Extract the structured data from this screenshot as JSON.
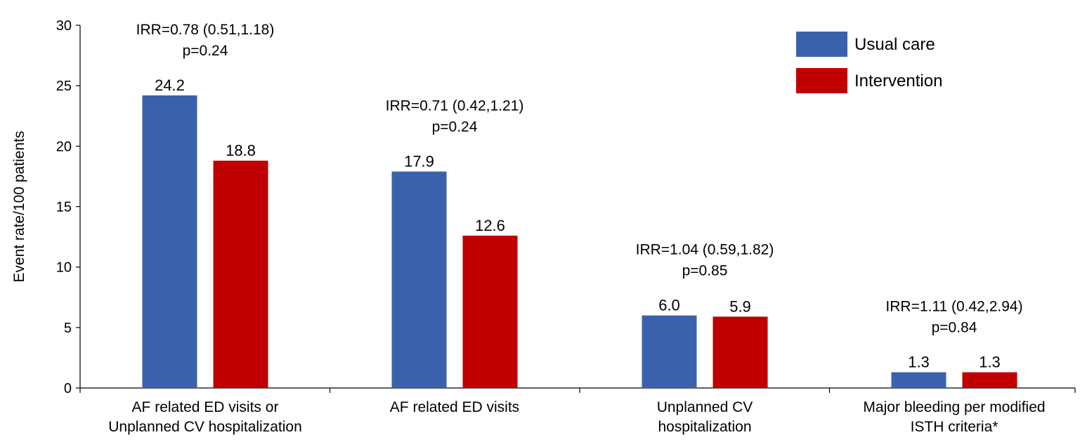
{
  "chart_data": {
    "type": "bar",
    "title": "",
    "ylabel": "Event rate/100 patients",
    "xlabel": "",
    "ylim": [
      0,
      30
    ],
    "yticks": [
      0,
      5,
      10,
      15,
      20,
      25,
      30
    ],
    "grid": false,
    "legend_position": "top-right",
    "categories": [
      [
        "AF related ED visits or",
        "Unplanned CV hospitalization"
      ],
      [
        "AF related ED visits"
      ],
      [
        "Unplanned CV",
        "hospitalization"
      ],
      [
        "Major bleeding per modified",
        "ISTH criteria*"
      ]
    ],
    "series": [
      {
        "name": "Usual care",
        "color": "#3A62AC",
        "values": [
          24.2,
          17.9,
          6.0,
          1.3
        ],
        "labels": [
          "24.2",
          "17.9",
          "6.0",
          "1.3"
        ]
      },
      {
        "name": "Intervention",
        "color": "#C00000",
        "values": [
          18.8,
          12.6,
          5.9,
          1.3
        ],
        "labels": [
          "18.8",
          "12.6",
          "5.9",
          "1.3"
        ]
      }
    ],
    "annotations": [
      {
        "category_index": 0,
        "lines": [
          "IRR=0.78 (0.51,1.18)",
          "p=0.24"
        ]
      },
      {
        "category_index": 1,
        "lines": [
          "IRR=0.71 (0.42,1.21)",
          "p=0.24"
        ]
      },
      {
        "category_index": 2,
        "lines": [
          "IRR=1.04 (0.59,1.82)",
          "p=0.85"
        ]
      },
      {
        "category_index": 3,
        "lines": [
          "IRR=1.11 (0.42,2.94)",
          "p=0.84"
        ]
      }
    ]
  }
}
